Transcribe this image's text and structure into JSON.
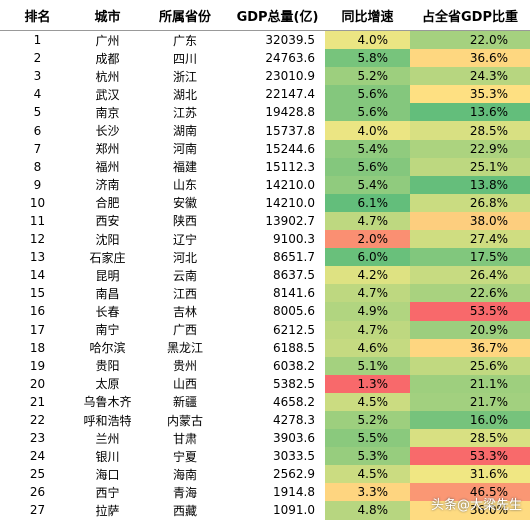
{
  "table": {
    "header": [
      "排名",
      "城市",
      "所属省份",
      "GDP总量(亿)",
      "同比增速",
      "占全省GDP比重"
    ],
    "rows": [
      [
        "1",
        "广州",
        "广东",
        "32039.5",
        "4.0%",
        "22.0%"
      ],
      [
        "2",
        "成都",
        "四川",
        "24763.6",
        "5.8%",
        "36.6%"
      ],
      [
        "3",
        "杭州",
        "浙江",
        "23010.9",
        "5.2%",
        "24.3%"
      ],
      [
        "4",
        "武汉",
        "湖北",
        "22147.4",
        "5.6%",
        "35.3%"
      ],
      [
        "5",
        "南京",
        "江苏",
        "19428.8",
        "5.6%",
        "13.6%"
      ],
      [
        "6",
        "长沙",
        "湖南",
        "15737.8",
        "4.0%",
        "28.5%"
      ],
      [
        "7",
        "郑州",
        "河南",
        "15244.6",
        "5.4%",
        "22.9%"
      ],
      [
        "8",
        "福州",
        "福建",
        "15112.3",
        "5.6%",
        "25.1%"
      ],
      [
        "9",
        "济南",
        "山东",
        "14210.0",
        "5.4%",
        "13.8%"
      ],
      [
        "10",
        "合肥",
        "安徽",
        "14210.0",
        "6.1%",
        "26.8%"
      ],
      [
        "11",
        "西安",
        "陕西",
        "13902.7",
        "4.7%",
        "38.0%"
      ],
      [
        "12",
        "沈阳",
        "辽宁",
        "9100.3",
        "2.0%",
        "27.4%"
      ],
      [
        "13",
        "石家庄",
        "河北",
        "8651.7",
        "6.0%",
        "17.5%"
      ],
      [
        "14",
        "昆明",
        "云南",
        "8637.5",
        "4.2%",
        "26.4%"
      ],
      [
        "15",
        "南昌",
        "江西",
        "8141.6",
        "4.7%",
        "22.6%"
      ],
      [
        "16",
        "长春",
        "吉林",
        "8005.6",
        "4.9%",
        "53.5%"
      ],
      [
        "17",
        "南宁",
        "广西",
        "6212.5",
        "4.7%",
        "20.9%"
      ],
      [
        "18",
        "哈尔滨",
        "黑龙江",
        "6188.5",
        "4.6%",
        "36.7%"
      ],
      [
        "19",
        "贵阳",
        "贵州",
        "6038.2",
        "5.1%",
        "25.6%"
      ],
      [
        "20",
        "太原",
        "山西",
        "5382.5",
        "1.3%",
        "21.1%"
      ],
      [
        "21",
        "乌鲁木齐",
        "新疆",
        "4658.2",
        "4.5%",
        "21.7%"
      ],
      [
        "22",
        "呼和浩特",
        "内蒙古",
        "4278.3",
        "5.2%",
        "16.0%"
      ],
      [
        "23",
        "兰州",
        "甘肃",
        "3903.6",
        "5.5%",
        "28.5%"
      ],
      [
        "24",
        "银川",
        "宁夏",
        "3033.5",
        "5.3%",
        "53.3%"
      ],
      [
        "25",
        "海口",
        "海南",
        "2562.9",
        "4.5%",
        "31.6%"
      ],
      [
        "26",
        "西宁",
        "青海",
        "1914.8",
        "3.3%",
        "46.5%"
      ],
      [
        "27",
        "拉萨",
        "西藏",
        "1091.0",
        "4.8%",
        "36.0%"
      ]
    ]
  },
  "watermark": "头条@大梁先生"
}
